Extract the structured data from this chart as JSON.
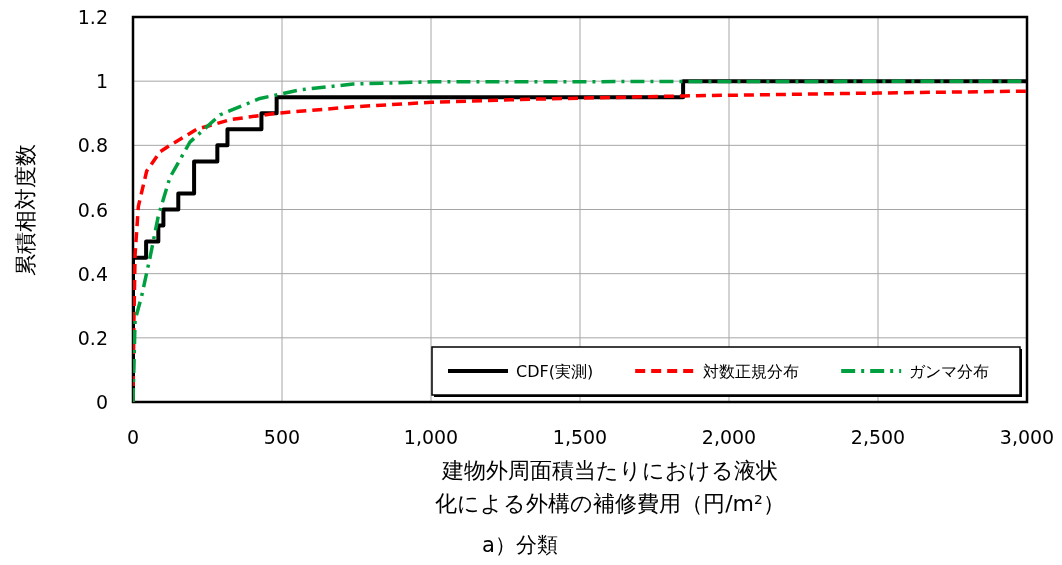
{
  "chart_data": {
    "type": "line",
    "xlabel": "建物外周面積当たりにおける液状化による外構の補修費用（円/m²）",
    "ylabel": "累積相対度数",
    "annotations": [
      "a）分類"
    ],
    "xlim": [
      0,
      3000
    ],
    "xticks": [
      0,
      500,
      {
        "value": 1000,
        "label": "1,000"
      },
      {
        "value": 1500,
        "label": "1,500"
      },
      {
        "value": 2000,
        "label": "2,000"
      },
      {
        "value": 2500,
        "label": "2,500"
      },
      {
        "value": 3000,
        "label": "3,000"
      }
    ],
    "ylim": [
      0,
      1.2
    ],
    "yticks": [
      0,
      0.2,
      0.4,
      0.6,
      0.8,
      1,
      1.2
    ],
    "grid": true,
    "legend": "bottom right",
    "series": [
      {
        "name": "CDF(実測)",
        "type": "step",
        "color": "#000000",
        "line_style": "solid",
        "x": [
          0,
          0,
          44,
          85,
          102,
          152,
          205,
          283,
          317,
          431,
          482,
          1846,
          3000
        ],
        "values": [
          0,
          0.45,
          0.5,
          0.55,
          0.6,
          0.65,
          0.75,
          0.8,
          0.85,
          0.9,
          0.95,
          1,
          1
        ]
      },
      {
        "name": "対数正規分布",
        "type": "line",
        "color": "#ff0000",
        "line_style": "dashed",
        "x": [
          0,
          3,
          7,
          18,
          46,
          91,
          124,
          214,
          326,
          482,
          739,
          1002,
          1299,
          1850,
          2500,
          3000
        ],
        "values": [
          0,
          0.25,
          0.46,
          0.61,
          0.72,
          0.78,
          0.8,
          0.85,
          0.88,
          0.9,
          0.92,
          0.934,
          0.943,
          0.954,
          0.963,
          0.969
        ]
      },
      {
        "name": "ガンマ分布",
        "type": "line",
        "color": "#00a040",
        "line_style": "dashdot",
        "x": [
          0,
          7,
          29,
          57,
          85,
          124,
          191,
          292,
          426,
          560,
          739,
          1002,
          3000
        ],
        "values": [
          0,
          0.255,
          0.33,
          0.45,
          0.58,
          0.7,
          0.81,
          0.895,
          0.946,
          0.973,
          0.991,
          0.998,
          1
        ]
      }
    ]
  }
}
